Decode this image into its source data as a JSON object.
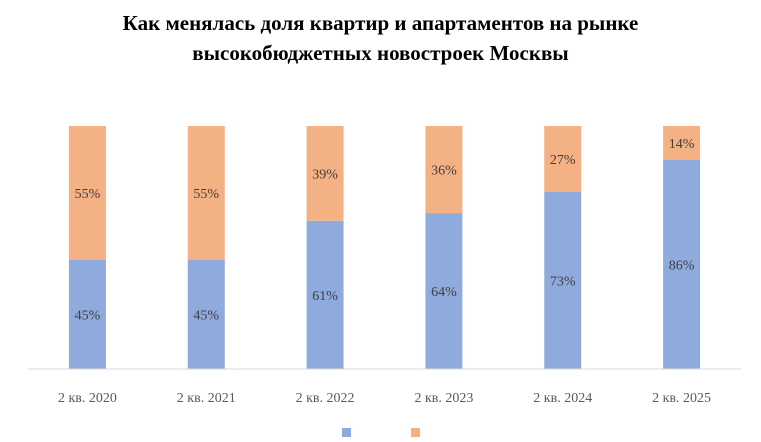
{
  "chart_data": {
    "type": "bar",
    "stacked": true,
    "title_lines": [
      "Как менялась доля квартир и апартаментов  на рынке",
      "высокобюджетных новостроек  Москвы"
    ],
    "categories": [
      "2 кв. 2020",
      "2 кв. 2021",
      "2 кв. 2022",
      "2 кв. 2023",
      "2 кв. 2024",
      "2 кв. 2025"
    ],
    "series": [
      {
        "values": [
          45,
          45,
          61,
          64,
          73,
          86
        ],
        "labels": [
          "45%",
          "45%",
          "61%",
          "64%",
          "73%",
          "86%"
        ],
        "color": "#8faadc"
      },
      {
        "values": [
          55,
          55,
          39,
          36,
          27,
          14
        ],
        "labels": [
          "55%",
          "55%",
          "39%",
          "36%",
          "27%",
          "14%"
        ],
        "color": "#f4b183"
      }
    ],
    "ylim": [
      0,
      100
    ],
    "grid": false,
    "legend_position": "bottom"
  }
}
